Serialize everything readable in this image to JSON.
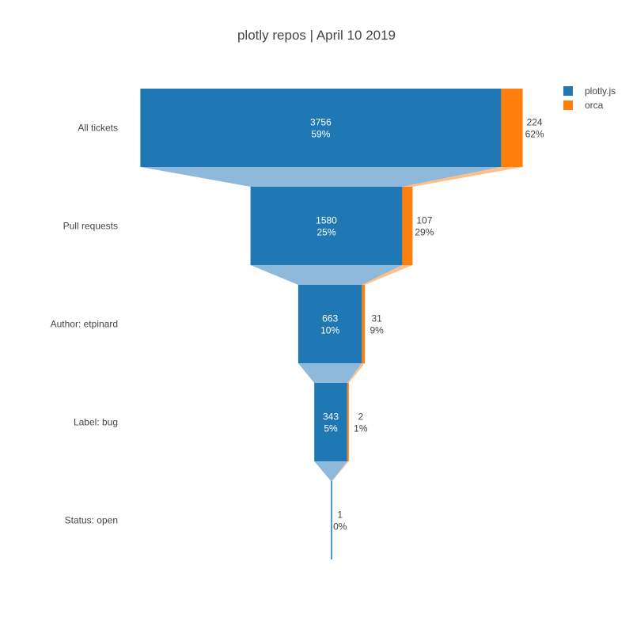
{
  "chart_data": {
    "type": "funnel",
    "title": "plotly repos | April 10 2019",
    "categories": [
      "All tickets",
      "Pull requests",
      "Author: etpinard",
      "Label: bug",
      "Status: open"
    ],
    "series": [
      {
        "name": "plotly.js",
        "color": "#1f77b4",
        "connector_color": "#8fb9db",
        "values": [
          3756,
          1580,
          663,
          343,
          1
        ],
        "percent_labels": [
          "59%",
          "25%",
          "10%",
          "5%",
          "0%"
        ]
      },
      {
        "name": "orca",
        "color": "#ff7f0e",
        "connector_color": "#ffbf86",
        "values": [
          224,
          107,
          31,
          2,
          null
        ],
        "percent_labels": [
          "62%",
          "29%",
          "9%",
          "1%",
          null
        ]
      }
    ],
    "legend_position": "top-right",
    "grid": false
  }
}
